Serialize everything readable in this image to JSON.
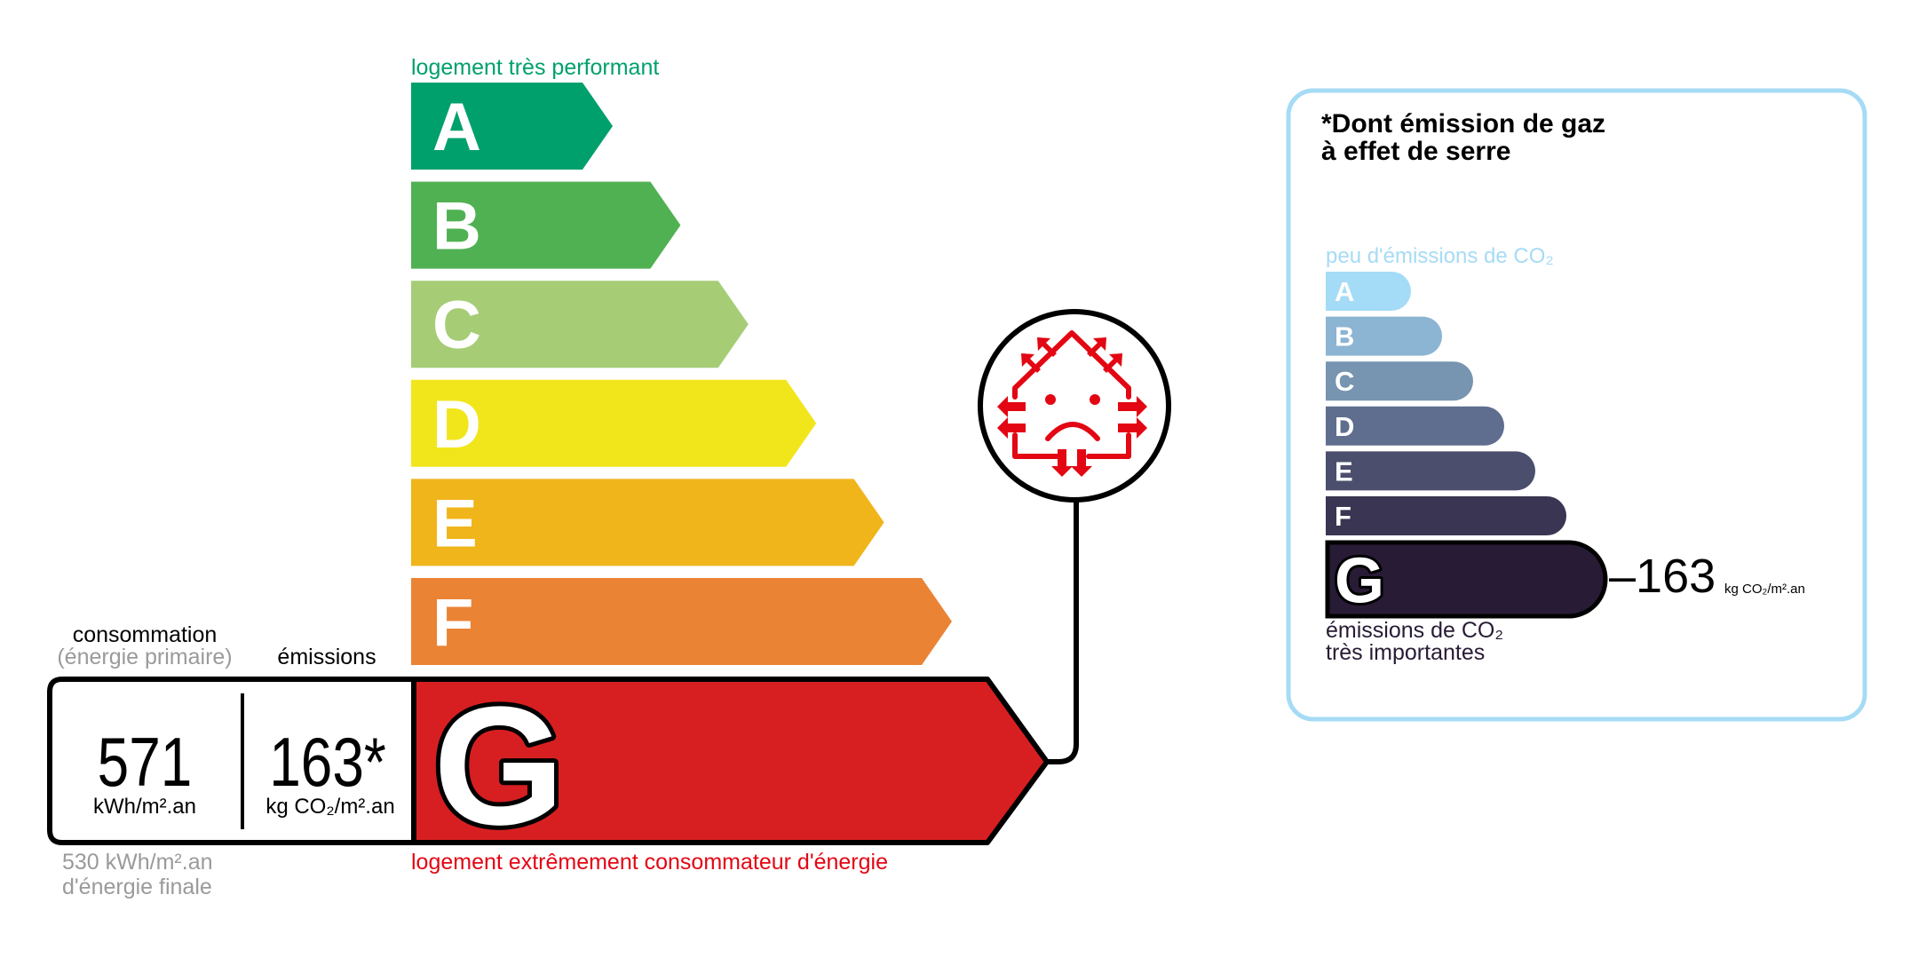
{
  "energy": {
    "top_label": "logement très performant",
    "bottom_label": "logement extrêmement consommateur d'énergie",
    "classes": [
      {
        "letter": "A",
        "color": "#00a06d"
      },
      {
        "letter": "B",
        "color": "#50b153"
      },
      {
        "letter": "C",
        "color": "#a6cd76"
      },
      {
        "letter": "D",
        "color": "#f1e61c"
      },
      {
        "letter": "E",
        "color": "#f0b51b"
      },
      {
        "letter": "F",
        "color": "#eb8335"
      },
      {
        "letter": "G",
        "color": "#d71f21"
      }
    ],
    "current_class": "G",
    "consumption_label": "consommation",
    "consumption_sublabel": "(énergie primaire)",
    "emissions_label": "émissions",
    "consumption_value": "571",
    "consumption_unit": "kWh/m².an",
    "emissions_value": "163*",
    "emissions_unit": "kg CO₂/m².an",
    "final_energy_value": "530 kWh/m².an",
    "final_energy_label": "d'énergie finale",
    "icon": "house-heat-loss-sad-icon",
    "icon_color": "#e30613"
  },
  "ghg": {
    "title_line1": "*Dont émission de gaz",
    "title_line2": "à effet de serre",
    "top_label": "peu d'émissions de CO₂",
    "bottom_label_line1": "émissions de CO₂",
    "bottom_label_line2": "très importantes",
    "classes": [
      {
        "letter": "A",
        "color": "#a4dbf7"
      },
      {
        "letter": "B",
        "color": "#8cb4d3"
      },
      {
        "letter": "C",
        "color": "#7794b1"
      },
      {
        "letter": "D",
        "color": "#5f6e8f"
      },
      {
        "letter": "E",
        "color": "#4b4f6d"
      },
      {
        "letter": "F",
        "color": "#3a3552"
      },
      {
        "letter": "G",
        "color": "#281b35"
      }
    ],
    "current_class": "G",
    "value": "163",
    "value_prefix": "–",
    "unit": "kg CO₂/m².an",
    "border_color": "#a6dbf5"
  }
}
